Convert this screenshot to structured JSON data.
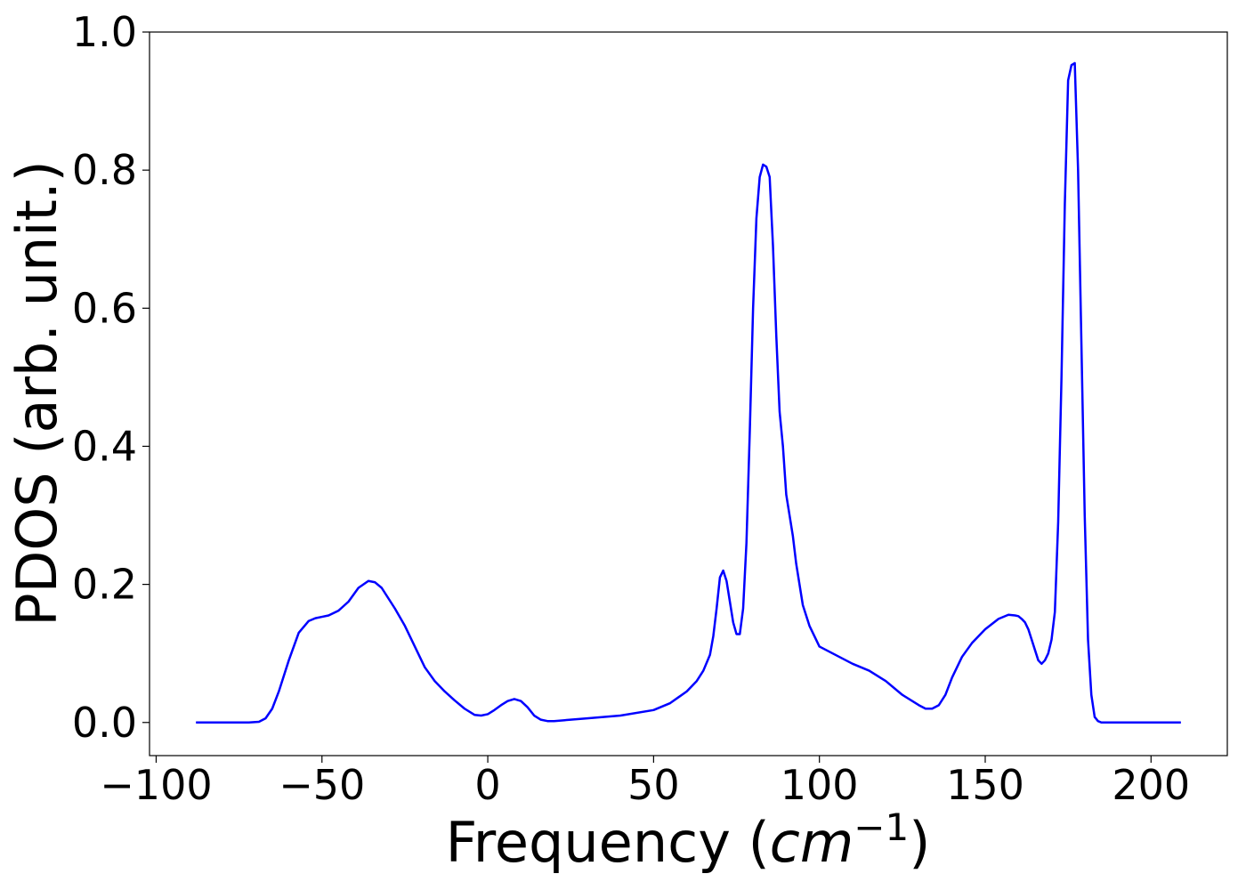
{
  "chart_data": {
    "type": "line",
    "title": "",
    "xlabel": "Frequency (",
    "xlabel_unit_base": "cm",
    "xlabel_unit_exp": "−1",
    "xlabel_close": ")",
    "ylabel": "PDOS (arb. unit.)",
    "xlim": [
      -102,
      223
    ],
    "ylim": [
      -0.048,
      1.0
    ],
    "grid": false,
    "legend": "none",
    "x_ticks": [
      -100,
      -50,
      0,
      50,
      100,
      150,
      200
    ],
    "x_tick_labels": [
      "−100",
      "−50",
      "0",
      "50",
      "100",
      "150",
      "200"
    ],
    "y_ticks": [
      0.0,
      0.2,
      0.4,
      0.6,
      0.8,
      1.0
    ],
    "y_tick_labels": [
      "0.0",
      "0.2",
      "0.4",
      "0.6",
      "0.8",
      "1.0"
    ],
    "series": [
      {
        "color": "#0000ff",
        "x": [
          -88,
          -80,
          -72,
          -69,
          -67,
          -65,
          -63,
          -60,
          -57,
          -54,
          -52,
          -50,
          -48,
          -45,
          -42,
          -39,
          -36,
          -34,
          -32,
          -30,
          -28,
          -25,
          -22,
          -19,
          -16,
          -13,
          -10,
          -7,
          -4,
          -2,
          0,
          2,
          4,
          6,
          8,
          10,
          12,
          14,
          16,
          18,
          20,
          25,
          30,
          40,
          50,
          55,
          60,
          63,
          65,
          67,
          68,
          69,
          70,
          71,
          72,
          73,
          74,
          75,
          76,
          77,
          78,
          79,
          80,
          81,
          82,
          83,
          84,
          85,
          86,
          87,
          88,
          89,
          90,
          91,
          92,
          93,
          95,
          97,
          99,
          100,
          102,
          104,
          106,
          108,
          110,
          115,
          120,
          125,
          130,
          132,
          134,
          136,
          138,
          140,
          143,
          146,
          150,
          154,
          157,
          159,
          160,
          161,
          162,
          163,
          164,
          165,
          166,
          167,
          168,
          169,
          170,
          171,
          172,
          173,
          174,
          175,
          176,
          177,
          178,
          179,
          180,
          181,
          182,
          183,
          184,
          185,
          186,
          187,
          188,
          189,
          190,
          191,
          192,
          195,
          200,
          209
        ],
        "y": [
          0.0,
          0.0,
          0.0,
          0.001,
          0.006,
          0.02,
          0.045,
          0.09,
          0.13,
          0.147,
          0.151,
          0.153,
          0.155,
          0.162,
          0.175,
          0.195,
          0.205,
          0.203,
          0.195,
          0.18,
          0.165,
          0.14,
          0.11,
          0.08,
          0.06,
          0.045,
          0.032,
          0.02,
          0.011,
          0.01,
          0.012,
          0.018,
          0.025,
          0.031,
          0.034,
          0.031,
          0.022,
          0.01,
          0.004,
          0.002,
          0.002,
          0.004,
          0.006,
          0.01,
          0.018,
          0.028,
          0.045,
          0.06,
          0.075,
          0.098,
          0.125,
          0.165,
          0.21,
          0.22,
          0.205,
          0.175,
          0.145,
          0.128,
          0.128,
          0.165,
          0.26,
          0.42,
          0.6,
          0.73,
          0.79,
          0.808,
          0.805,
          0.79,
          0.69,
          0.56,
          0.45,
          0.4,
          0.33,
          0.3,
          0.27,
          0.23,
          0.17,
          0.14,
          0.12,
          0.11,
          0.105,
          0.1,
          0.095,
          0.09,
          0.085,
          0.075,
          0.06,
          0.04,
          0.025,
          0.02,
          0.02,
          0.025,
          0.04,
          0.065,
          0.095,
          0.115,
          0.135,
          0.15,
          0.156,
          0.155,
          0.154,
          0.15,
          0.145,
          0.135,
          0.12,
          0.105,
          0.09,
          0.085,
          0.09,
          0.1,
          0.12,
          0.16,
          0.29,
          0.5,
          0.75,
          0.93,
          0.952,
          0.955,
          0.8,
          0.55,
          0.3,
          0.12,
          0.04,
          0.008,
          0.002,
          0.0,
          0.0,
          0.0,
          0.0,
          0.0,
          0.0,
          0.0,
          0.0,
          0.0,
          0.0,
          0.0
        ]
      }
    ]
  }
}
